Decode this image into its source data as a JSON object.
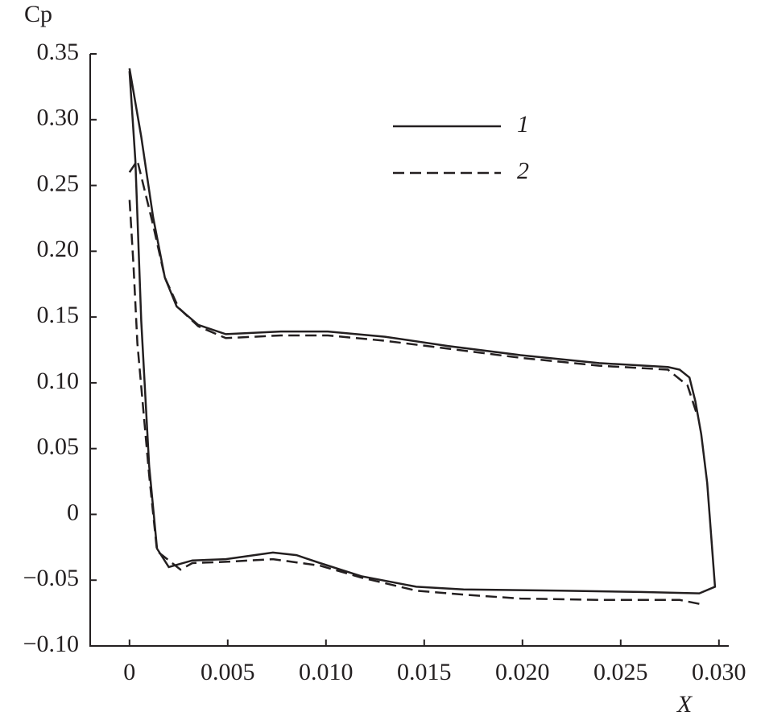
{
  "chart_data": {
    "type": "line",
    "xlabel": "X",
    "ylabel": "Cp",
    "xlim": [
      -0.002,
      0.0305
    ],
    "ylim": [
      -0.1,
      0.35
    ],
    "xticks": [
      0,
      0.005,
      {
        "value": 0.01,
        "label": "0.010"
      },
      0.015,
      {
        "value": 0.02,
        "label": "0.020"
      },
      0.025,
      {
        "value": 0.03,
        "label": "0.030"
      }
    ],
    "yticks": [
      {
        "value": -0.1,
        "label": "−0.10"
      },
      {
        "value": -0.05,
        "label": "−0.05"
      },
      0,
      0.05,
      {
        "value": 0.1,
        "label": "0.10"
      },
      0.15,
      {
        "value": 0.2,
        "label": "0.20"
      },
      0.25,
      {
        "value": 0.3,
        "label": "0.30"
      },
      0.35
    ],
    "legend": "top-right",
    "series": [
      {
        "name": "1",
        "color": "#231f20",
        "dash": false,
        "x": [
          0.0,
          0.0006,
          0.0012,
          0.0018,
          0.0024,
          0.0035,
          0.0049,
          0.0077,
          0.0101,
          0.013,
          0.0162,
          0.0199,
          0.0239,
          0.0274,
          0.028,
          0.0285,
          0.0288,
          0.0291,
          0.0294,
          0.0296,
          0.0298,
          0.029,
          0.026,
          0.0219,
          0.017,
          0.0146,
          0.0118,
          0.0097,
          0.0085,
          0.0073,
          0.0049,
          0.0032,
          0.002,
          0.0014,
          0.001,
          0.0006,
          0.0003,
          0.0
        ],
        "values": [
          0.339,
          0.287,
          0.226,
          0.18,
          0.158,
          0.144,
          0.137,
          0.139,
          0.139,
          0.135,
          0.128,
          0.121,
          0.115,
          0.112,
          0.11,
          0.104,
          0.086,
          0.061,
          0.024,
          -0.015,
          -0.055,
          -0.06,
          -0.059,
          -0.058,
          -0.057,
          -0.055,
          -0.047,
          -0.037,
          -0.031,
          -0.029,
          -0.034,
          -0.035,
          -0.04,
          -0.026,
          0.037,
          0.147,
          0.269,
          0.337
        ]
      },
      {
        "name": "2",
        "color": "#231f20",
        "dash": true,
        "x": [
          0.0,
          0.0004,
          0.0012,
          0.0018,
          0.0025,
          0.0035,
          0.0049,
          0.0077,
          0.0101,
          0.013,
          0.0162,
          0.0199,
          0.0239,
          0.0274,
          0.0284,
          0.0289
        ],
        "values": [
          0.26,
          0.269,
          0.22,
          0.18,
          0.157,
          0.143,
          0.134,
          0.136,
          0.136,
          0.132,
          0.126,
          0.119,
          0.113,
          0.11,
          0.098,
          0.075
        ]
      },
      {
        "name": "2",
        "color": "#231f20",
        "dash": true,
        "x": [
          0.029,
          0.028,
          0.024,
          0.0199,
          0.017,
          0.0146,
          0.0118,
          0.0097,
          0.0073,
          0.005,
          0.0032,
          0.0026,
          0.0014,
          0.001,
          0.0004,
          0.0002,
          0.0
        ],
        "values": [
          -0.068,
          -0.065,
          -0.065,
          -0.064,
          -0.061,
          -0.058,
          -0.048,
          -0.039,
          -0.034,
          -0.036,
          -0.037,
          -0.042,
          -0.028,
          0.03,
          0.13,
          0.19,
          0.24
        ]
      }
    ]
  }
}
